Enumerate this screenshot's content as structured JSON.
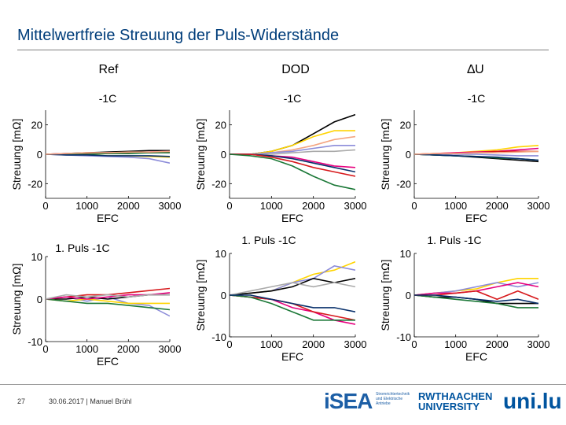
{
  "slide": {
    "title": "Mittelwertfreie Streuung der Puls-Widerstände",
    "page_number": "27",
    "footer": "30.06.2017 | Manuel Brühl"
  },
  "columns": [
    "Ref",
    "DOD",
    "∆U"
  ],
  "logos": {
    "isea": "iSEA",
    "isea_sub": "Stromrichtertechnik und Elektrische Antriebe",
    "rwth": "RWTHAACHEN UNIVERSITY",
    "uni": "uni.lu"
  },
  "chart_data": [
    {
      "type": "line",
      "panel": "ref-1c",
      "title": "-1C",
      "xlabel": "EFC",
      "ylabel": "Streuung [mΩ]",
      "xlim": [
        0,
        3000
      ],
      "ylim": [
        -30,
        30
      ],
      "xticks": [
        "0",
        "1000",
        "2000",
        "3000"
      ],
      "yticks": [
        "20",
        "0",
        "-20"
      ],
      "x": [
        0,
        500,
        1000,
        1500,
        2000,
        2500,
        3000
      ],
      "series": [
        {
          "color": "#000000",
          "values": [
            0,
            0.5,
            1,
            1.5,
            2,
            2.5,
            2.5
          ]
        },
        {
          "color": "#ffd400",
          "values": [
            0,
            0,
            -0.5,
            -1,
            -1,
            -1.5,
            -2
          ]
        },
        {
          "color": "#8c8cd9",
          "values": [
            0,
            -0.5,
            -1,
            -1.5,
            -2,
            -3,
            -6
          ]
        },
        {
          "color": "#e6007e",
          "values": [
            0,
            0.5,
            0.5,
            1,
            1,
            1.5,
            2
          ]
        },
        {
          "color": "#d7191c",
          "values": [
            0,
            0,
            0.5,
            0.5,
            1,
            1,
            1.5
          ]
        },
        {
          "color": "#1b7837",
          "values": [
            0,
            0,
            0,
            0.5,
            0.5,
            1,
            1
          ]
        },
        {
          "color": "#08306b",
          "values": [
            0,
            -0.5,
            -0.5,
            -1,
            -1,
            -1,
            -1.5
          ]
        },
        {
          "color": "#f4a582",
          "values": [
            0,
            0.5,
            1,
            1,
            1.5,
            1.5,
            2
          ]
        }
      ]
    },
    {
      "type": "line",
      "panel": "dod-1c",
      "title": "-1C",
      "xlabel": "EFC",
      "ylabel": "Streuung [mΩ]",
      "xlim": [
        0,
        3000
      ],
      "ylim": [
        -30,
        30
      ],
      "xticks": [
        "0",
        "1000",
        "2000",
        "3000"
      ],
      "yticks": [
        "20",
        "0",
        "-20"
      ],
      "x": [
        0,
        500,
        1000,
        1500,
        2000,
        2500,
        3000
      ],
      "series": [
        {
          "color": "#000000",
          "values": [
            0,
            0,
            2,
            6,
            14,
            22,
            27
          ]
        },
        {
          "color": "#ffd400",
          "values": [
            0,
            0,
            2,
            6,
            12,
            16,
            16
          ]
        },
        {
          "color": "#f4a582",
          "values": [
            0,
            0,
            1,
            3,
            6,
            10,
            12
          ]
        },
        {
          "color": "#8c8cd9",
          "values": [
            0,
            0,
            1,
            2,
            4,
            6,
            6
          ]
        },
        {
          "color": "#aaaaaa",
          "values": [
            0,
            0,
            0,
            1,
            2,
            2,
            3
          ]
        },
        {
          "color": "#e6007e",
          "values": [
            0,
            0,
            -1,
            -2,
            -5,
            -8,
            -9
          ]
        },
        {
          "color": "#08306b",
          "values": [
            0,
            0,
            -1,
            -3,
            -6,
            -9,
            -12
          ]
        },
        {
          "color": "#d7191c",
          "values": [
            0,
            0,
            -2,
            -5,
            -9,
            -12,
            -15
          ]
        },
        {
          "color": "#1b7837",
          "values": [
            0,
            -1,
            -3,
            -8,
            -15,
            -21,
            -24
          ]
        }
      ]
    },
    {
      "type": "line",
      "panel": "du-1c",
      "title": "-1C",
      "xlabel": "EFC",
      "ylabel": "Streuung [mΩ]",
      "xlim": [
        0,
        3000
      ],
      "ylim": [
        -30,
        30
      ],
      "xticks": [
        "0",
        "1000",
        "2000",
        "3000"
      ],
      "yticks": [
        "20",
        "0",
        "-20"
      ],
      "x": [
        0,
        500,
        1000,
        1500,
        2000,
        2500,
        3000
      ],
      "series": [
        {
          "color": "#ffd400",
          "values": [
            0,
            0.5,
            1,
            2,
            3,
            5,
            6
          ]
        },
        {
          "color": "#e6007e",
          "values": [
            0,
            0.5,
            1,
            1.5,
            2,
            3,
            4
          ]
        },
        {
          "color": "#d7191c",
          "values": [
            0,
            0,
            0.5,
            1,
            2,
            2,
            2
          ]
        },
        {
          "color": "#8c8cd9",
          "values": [
            0,
            0,
            0,
            0,
            -0.5,
            -1,
            -1
          ]
        },
        {
          "color": "#000000",
          "values": [
            0,
            -0.5,
            -1,
            -2,
            -3,
            -4,
            -5
          ]
        },
        {
          "color": "#1b7837",
          "values": [
            0,
            -0.5,
            -1,
            -1.5,
            -2.5,
            -3,
            -4
          ]
        },
        {
          "color": "#08306b",
          "values": [
            0,
            -0.5,
            -1,
            -1.5,
            -2,
            -3,
            -4
          ]
        },
        {
          "color": "#f4a582",
          "values": [
            0,
            0.5,
            0.5,
            1,
            1,
            1.5,
            2
          ]
        }
      ]
    },
    {
      "type": "line",
      "panel": "ref-1puls",
      "title": "1. Puls   -1C",
      "xlabel": "EFC",
      "ylabel": "Streuung [mΩ]",
      "xlim": [
        0,
        3000
      ],
      "ylim": [
        -10,
        10
      ],
      "xticks": [
        "0",
        "1000",
        "2000",
        "3000"
      ],
      "yticks": [
        "10",
        "0",
        "-10"
      ],
      "x": [
        0,
        500,
        1000,
        1500,
        2000,
        2500,
        3000
      ],
      "series": [
        {
          "color": "#8c8cd9",
          "values": [
            0,
            0.5,
            -0.5,
            0.5,
            -1,
            -1.5,
            -4
          ]
        },
        {
          "color": "#d7191c",
          "values": [
            0,
            0.5,
            1,
            1,
            1.5,
            2,
            2.5
          ]
        },
        {
          "color": "#000000",
          "values": [
            0,
            0,
            0.5,
            0,
            0.5,
            1,
            1
          ]
        },
        {
          "color": "#ffd400",
          "values": [
            0,
            -0.5,
            0,
            -0.5,
            -1,
            -1,
            -1
          ]
        },
        {
          "color": "#1b7837",
          "values": [
            0,
            -0.5,
            -1,
            -1,
            -1.5,
            -2,
            -2.5
          ]
        },
        {
          "color": "#e6007e",
          "values": [
            0,
            0.5,
            0,
            0.5,
            1,
            1,
            1.5
          ]
        },
        {
          "color": "#aaaaaa",
          "values": [
            0,
            1,
            0.5,
            1,
            0.5,
            1,
            1
          ]
        }
      ]
    },
    {
      "type": "line",
      "panel": "dod-1puls",
      "title": "1. Puls  -1C",
      "xlabel": "EFC",
      "ylabel": "Streuung [mΩ]",
      "xlim": [
        0,
        3000
      ],
      "ylim": [
        -10,
        10
      ],
      "xticks": [
        "0",
        "1000",
        "2000",
        "3000"
      ],
      "yticks": [
        "10",
        "0",
        "-10"
      ],
      "x": [
        0,
        500,
        1000,
        1500,
        2000,
        2500,
        3000
      ],
      "series": [
        {
          "color": "#ffd400",
          "values": [
            0,
            0.5,
            1,
            3,
            5,
            6,
            8
          ]
        },
        {
          "color": "#8c8cd9",
          "values": [
            0,
            0.5,
            1,
            3,
            4,
            7,
            6
          ]
        },
        {
          "color": "#000000",
          "values": [
            0,
            0.5,
            1,
            2,
            4,
            3,
            4
          ]
        },
        {
          "color": "#aaaaaa",
          "values": [
            0,
            1,
            2,
            3,
            2,
            3,
            2
          ]
        },
        {
          "color": "#e6007e",
          "values": [
            0,
            -0.5,
            -1,
            -3,
            -4,
            -6,
            -7
          ]
        },
        {
          "color": "#d7191c",
          "values": [
            0,
            -0.5,
            -1,
            -2,
            -4,
            -5,
            -6
          ]
        },
        {
          "color": "#1b7837",
          "values": [
            0,
            -0.5,
            -2,
            -4,
            -6,
            -6,
            -6
          ]
        },
        {
          "color": "#08306b",
          "values": [
            0,
            0,
            -1,
            -2,
            -3,
            -3,
            -4
          ]
        }
      ]
    },
    {
      "type": "line",
      "panel": "du-1puls",
      "title": "1. Puls  -1C",
      "xlabel": "EFC",
      "ylabel": "Streuung [mΩ]",
      "xlim": [
        0,
        3000
      ],
      "ylim": [
        -10,
        10
      ],
      "xticks": [
        "0",
        "1000",
        "2000",
        "3000"
      ],
      "yticks": [
        "10",
        "0",
        "-10"
      ],
      "x": [
        0,
        500,
        1000,
        1500,
        2000,
        2500,
        3000
      ],
      "series": [
        {
          "color": "#ffd400",
          "values": [
            0,
            0.5,
            1,
            1.5,
            3,
            4,
            4
          ]
        },
        {
          "color": "#8c8cd9",
          "values": [
            0,
            0.5,
            1,
            2,
            3,
            2,
            3
          ]
        },
        {
          "color": "#e6007e",
          "values": [
            0,
            0.5,
            0.5,
            1,
            2,
            3,
            2
          ]
        },
        {
          "color": "#000000",
          "values": [
            0,
            -0.5,
            -0.5,
            -1,
            -2,
            -2,
            -2
          ]
        },
        {
          "color": "#1b7837",
          "values": [
            0,
            -0.5,
            -1,
            -1.5,
            -2,
            -3,
            -3
          ]
        },
        {
          "color": "#d7191c",
          "values": [
            0,
            0,
            0.5,
            1,
            -1,
            1,
            -1
          ]
        },
        {
          "color": "#08306b",
          "values": [
            0,
            0,
            -0.5,
            -1,
            -1.5,
            -1,
            -2
          ]
        }
      ]
    }
  ]
}
